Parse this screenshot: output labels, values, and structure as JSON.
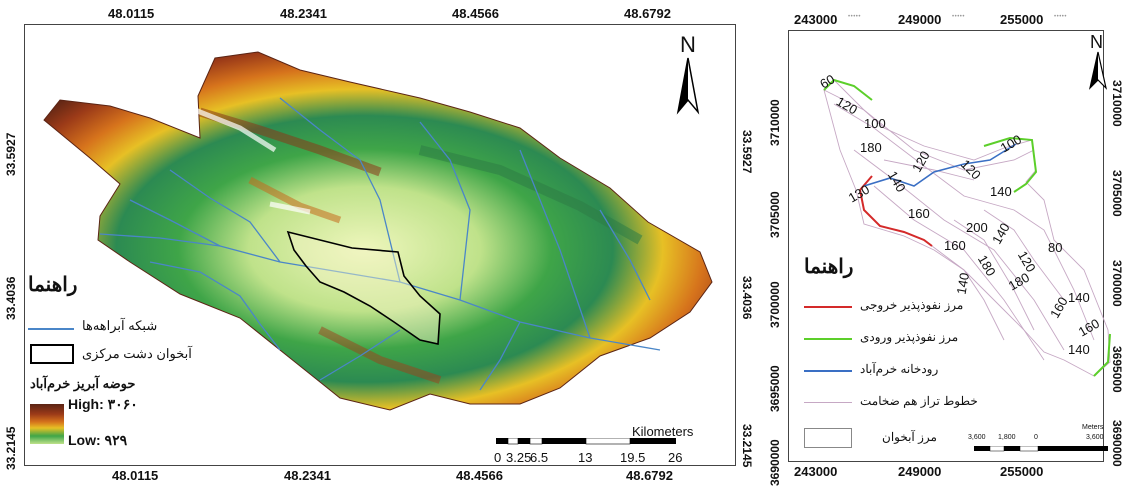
{
  "left_map": {
    "lon_ticks_top": [
      "48.0115",
      "48.2341",
      "48.4566",
      "48.6792"
    ],
    "lon_ticks_bottom": [
      "48.0115",
      "48.2341",
      "48.4566",
      "48.6792"
    ],
    "lat_ticks_left": [
      "33.5927",
      "33.4036",
      "33.2145"
    ],
    "lat_ticks_right": [
      "33.5927",
      "33.4036",
      "33.2145"
    ],
    "north_label": "N",
    "legend": {
      "title": "راهنما",
      "stream_network": "شبکه آبراهه‌ها",
      "aquifer": "آبخوان دشت مرکزی",
      "basin": "حوضه آبریز خرم‌آباد",
      "high": "High: ۳۰۶۰",
      "low": "Low: ۹۲۹"
    },
    "scalebar": {
      "unit": "Kilometers",
      "ticks": [
        "0",
        "3.25",
        "6.5",
        "13",
        "19.5",
        "26"
      ]
    },
    "colors": {
      "stream": "#4a86c8",
      "aquifer_outline": "#000000",
      "dem_high": "#6e2a14",
      "dem_mid": "#d99a1c",
      "dem_green": "#2b9a3c",
      "dem_low": "#e8f4b0"
    }
  },
  "right_map": {
    "x_ticks_top": [
      "243000",
      "249000",
      "255000"
    ],
    "x_ticks_bottom": [
      "243000",
      "249000",
      "255000"
    ],
    "y_ticks_left": [
      "3710000",
      "3705000",
      "3700000",
      "3695000",
      "3690000"
    ],
    "y_ticks_right": [
      "3710000",
      "3705000",
      "3700000",
      "3695000",
      "3690000"
    ],
    "north_label": "N",
    "contour_labels": [
      "60",
      "120",
      "100",
      "180",
      "120",
      "100",
      "140",
      "120",
      "140",
      "130",
      "160",
      "200",
      "140",
      "160",
      "180",
      "80",
      "120",
      "140",
      "180",
      "160",
      "140",
      "160",
      "140"
    ],
    "legend": {
      "title": "راهنما",
      "outflow_boundary": "مرز نفوذپذیر خروجی",
      "inflow_boundary": "مرز نفوذپذیر ورودی",
      "river": "رودخانه خرم‌آباد",
      "isopach": "خطوط تراز هم ضخامت",
      "aquifer_boundary": "مرز آبخوان"
    },
    "scalebar": {
      "unit": "Meters",
      "ticks": [
        "3,600",
        "1,800",
        "0",
        "3,600"
      ]
    },
    "colors": {
      "outflow": "#d42a2a",
      "inflow": "#5ccf2a",
      "river": "#3a6fc4",
      "isopach": "#c6a8c4"
    }
  }
}
